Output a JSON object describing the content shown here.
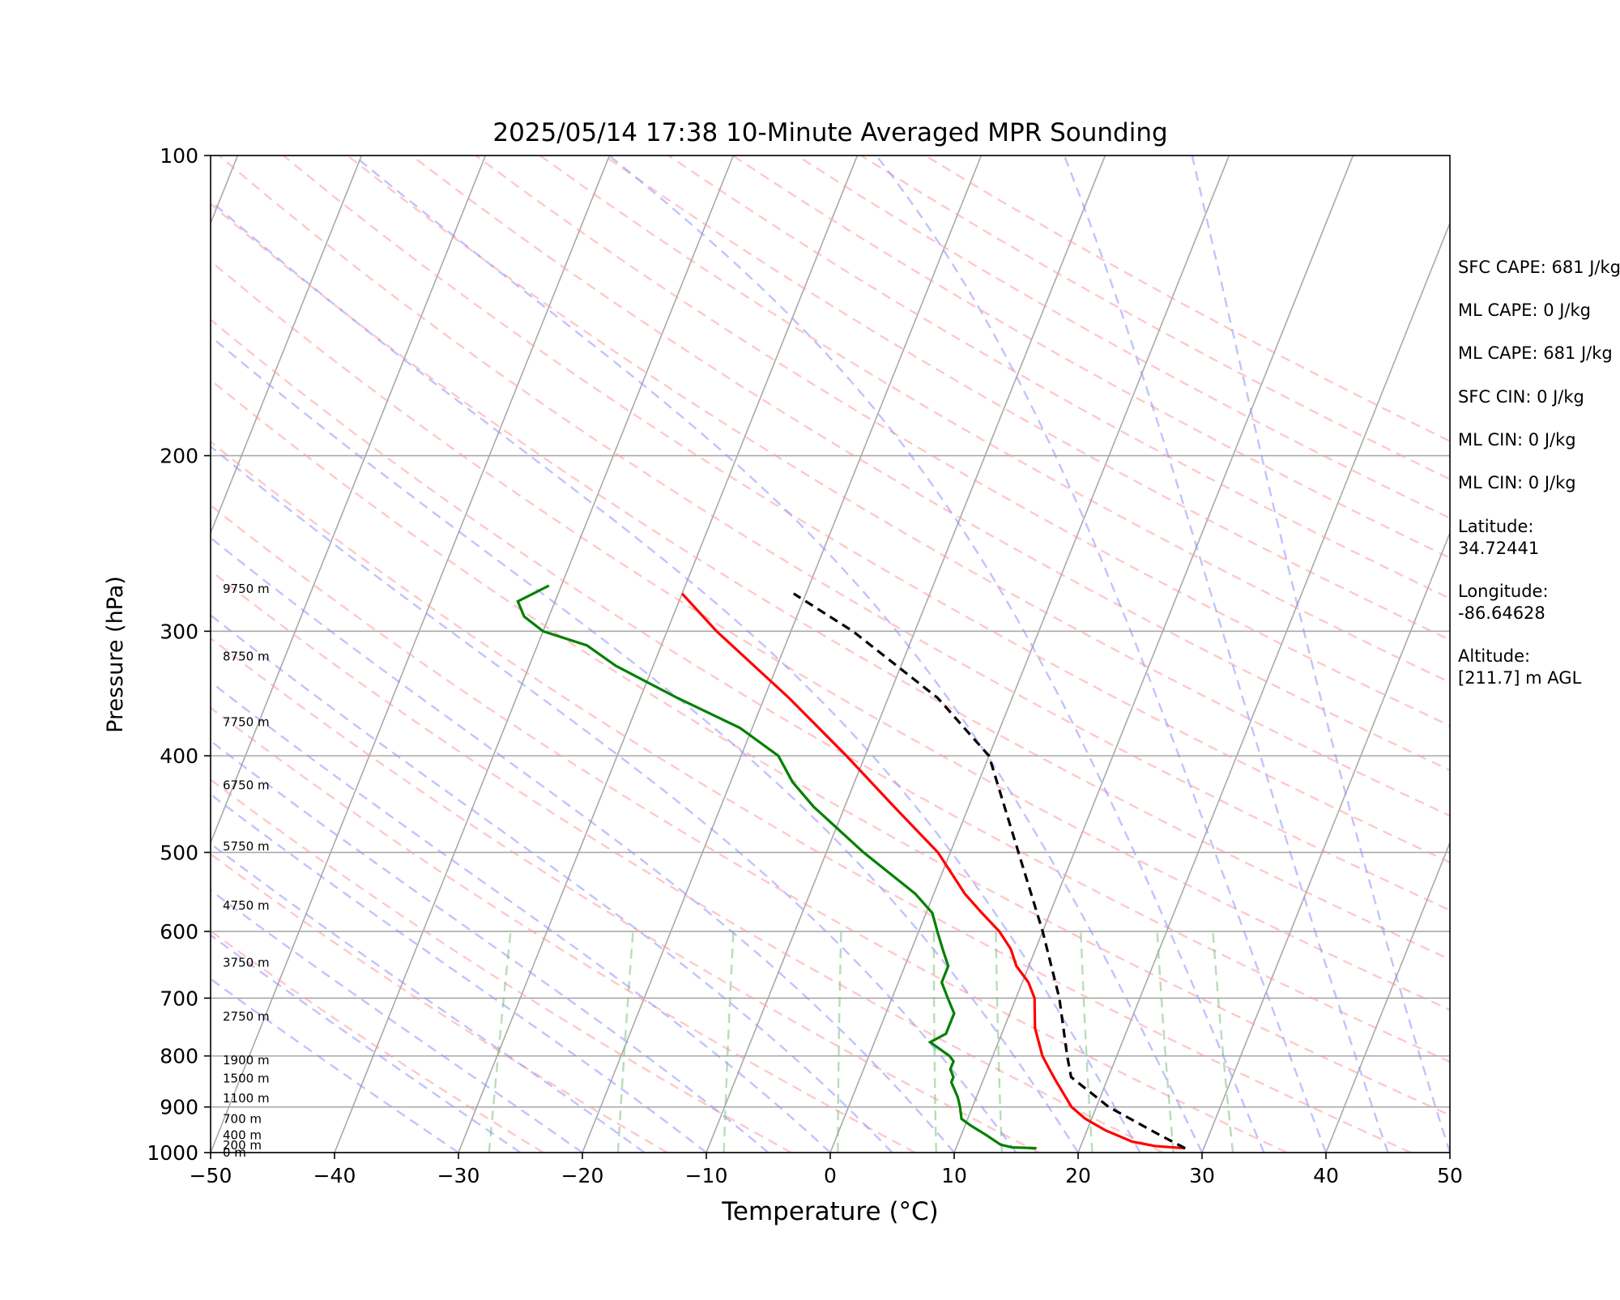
{
  "chart_data": {
    "type": "line",
    "title": "2025/05/14 17:38 10-Minute Averaged MPR Sounding",
    "xlabel": "Temperature (°C)",
    "ylabel": "Pressure (hPa)",
    "xlim": [
      -50,
      50
    ],
    "ylim": [
      1000,
      100
    ],
    "y_scale": "log",
    "skew": "skew-T log-P diagram",
    "grid": true,
    "x_ticks": [
      -50,
      -40,
      -30,
      -20,
      -10,
      0,
      10,
      20,
      30,
      40,
      50
    ],
    "x_tick_labels": [
      "−50",
      "−40",
      "−30",
      "−20",
      "−10",
      "0",
      "10",
      "20",
      "30",
      "40",
      "50"
    ],
    "y_ticks": [
      1000,
      900,
      800,
      700,
      600,
      500,
      400,
      300,
      200,
      100
    ],
    "y_tick_labels": [
      "1000",
      "900",
      "800",
      "700",
      "600",
      "500",
      "400",
      "300",
      "200",
      "100"
    ],
    "height_labels": [
      {
        "p": 1000,
        "text": "0 m"
      },
      {
        "p": 983,
        "text": "200 m"
      },
      {
        "p": 961,
        "text": "400 m"
      },
      {
        "p": 925,
        "text": "700 m"
      },
      {
        "p": 882,
        "text": "1100 m"
      },
      {
        "p": 843,
        "text": "1500 m"
      },
      {
        "p": 808,
        "text": "1900 m"
      },
      {
        "p": 730,
        "text": "2750 m"
      },
      {
        "p": 645,
        "text": "3750 m"
      },
      {
        "p": 565,
        "text": "4750 m"
      },
      {
        "p": 493,
        "text": "5750 m"
      },
      {
        "p": 428,
        "text": "6750 m"
      },
      {
        "p": 370,
        "text": "7750 m"
      },
      {
        "p": 318,
        "text": "8750 m"
      },
      {
        "p": 272,
        "text": "9750 m"
      }
    ],
    "series": [
      {
        "color": "#ff0000",
        "style": "solid",
        "points": [
          [
            28.5,
            990
          ],
          [
            27.5,
            988
          ],
          [
            26,
            985
          ],
          [
            24,
            975
          ],
          [
            21.5,
            950
          ],
          [
            19.5,
            925
          ],
          [
            18,
            900
          ],
          [
            16,
            850
          ],
          [
            15,
            825
          ],
          [
            14,
            800
          ],
          [
            12.5,
            750
          ],
          [
            11.5,
            700
          ],
          [
            10.5,
            675
          ],
          [
            9,
            650
          ],
          [
            8,
            625
          ],
          [
            6.5,
            600
          ],
          [
            4.5,
            575
          ],
          [
            2.5,
            550
          ],
          [
            -1,
            500
          ],
          [
            -6,
            450
          ],
          [
            -11.5,
            400
          ],
          [
            -18,
            350
          ],
          [
            -26,
            300
          ],
          [
            -30,
            275
          ]
        ]
      },
      {
        "color": "#008000",
        "style": "solid",
        "points": [
          [
            16.5,
            990
          ],
          [
            14.5,
            988
          ],
          [
            13.5,
            982
          ],
          [
            12,
            960
          ],
          [
            10.5,
            940
          ],
          [
            9.5,
            925
          ],
          [
            9,
            900
          ],
          [
            8.5,
            880
          ],
          [
            7.5,
            850
          ],
          [
            7.5,
            840
          ],
          [
            7,
            825
          ],
          [
            7,
            810
          ],
          [
            6.5,
            800
          ],
          [
            4.5,
            775
          ],
          [
            5.5,
            760
          ],
          [
            5.5,
            750
          ],
          [
            5.5,
            725
          ],
          [
            4.5,
            700
          ],
          [
            3.5,
            675
          ],
          [
            3.5,
            650
          ],
          [
            2.5,
            625
          ],
          [
            1.5,
            600
          ],
          [
            0.5,
            575
          ],
          [
            -1.5,
            550
          ],
          [
            -7,
            500
          ],
          [
            -12.5,
            450
          ],
          [
            -15,
            425
          ],
          [
            -17,
            400
          ],
          [
            -21,
            375
          ],
          [
            -27,
            350
          ],
          [
            -33,
            325
          ],
          [
            -36,
            310
          ],
          [
            -40,
            300
          ],
          [
            -42,
            290
          ],
          [
            -43,
            280
          ],
          [
            -41,
            270
          ]
        ]
      },
      {
        "color": "#000000",
        "style": "dashed",
        "points": [
          [
            28.5,
            990
          ],
          [
            26,
            960
          ],
          [
            21,
            900
          ],
          [
            17,
            840
          ],
          [
            16,
            800
          ],
          [
            13.5,
            700
          ],
          [
            10,
            600
          ],
          [
            5.5,
            500
          ],
          [
            0,
            400
          ],
          [
            -6,
            350
          ],
          [
            -15,
            300
          ],
          [
            -21,
            275
          ]
        ]
      }
    ]
  },
  "side_info": {
    "sfc_cape": "SFC CAPE: 681 J/kg",
    "ml_cape": "ML CAPE: 0 J/kg",
    "ml_cape_2": "ML CAPE: 681 J/kg",
    "sfc_cin": "SFC CIN: 0 J/kg",
    "ml_cin": "ML CIN: 0 J/kg",
    "ml_cin_2": "ML CIN: 0 J/kg",
    "latitude_label": "Latitude:",
    "latitude_value": "34.72441",
    "longitude_label": "Longitude:",
    "longitude_value": "-86.64628",
    "altitude_label": "Altitude:",
    "altitude_value": "[211.7] m AGL"
  }
}
